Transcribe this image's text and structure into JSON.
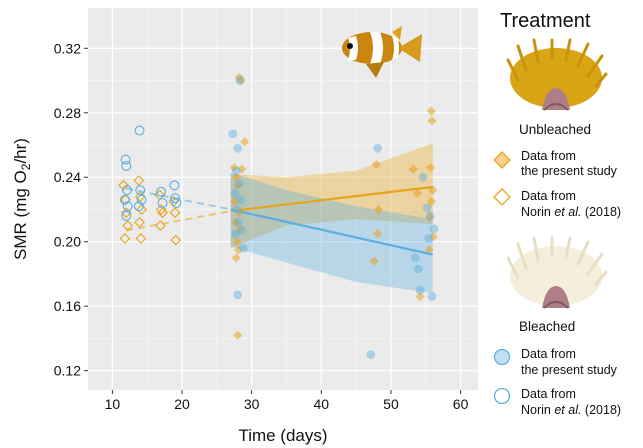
{
  "chart_data": {
    "type": "scatter",
    "xlabel": "Time (days)",
    "ylabel": "SMR (mg O",
    "ylabel_sub": "2",
    "ylabel_tail": "/hr)",
    "xlim": [
      6.5,
      62.5
    ],
    "ylim": [
      0.108,
      0.345
    ],
    "xticks": [
      10,
      20,
      30,
      40,
      50,
      60
    ],
    "yticks": [
      0.12,
      0.16,
      0.2,
      0.24,
      0.28,
      0.32
    ],
    "ytick_labels": [
      "0.12",
      "0.16",
      "0.20",
      "0.24",
      "0.28",
      "0.32"
    ],
    "grid": true,
    "legend_position": "right",
    "legend": {
      "title": "Treatment",
      "unbleached_label": "Unbleached",
      "bleached_label": "Bleached",
      "present_line1": "Data from",
      "present_line2": "the present study",
      "norin_line1": "Data from",
      "norin_line2a": "Norin ",
      "norin_line2b": "et al.",
      "norin_line2c": " (2018)"
    },
    "colors": {
      "unbleached": "#E8A317",
      "bleached": "#5AAEE0",
      "panel": "#EBEBEB",
      "grid": "#FFFFFF"
    },
    "series": [
      {
        "name": "Unbleached — Data from the present study",
        "marker": "filled-diamond",
        "color": "#E8A317",
        "points": [
          [
            27.5,
            0.246
          ],
          [
            27.8,
            0.24
          ],
          [
            28.0,
            0.235
          ],
          [
            27.6,
            0.225
          ],
          [
            28.2,
            0.218
          ],
          [
            27.7,
            0.212
          ],
          [
            28.3,
            0.208
          ],
          [
            27.9,
            0.2
          ],
          [
            28.1,
            0.195
          ],
          [
            27.8,
            0.19
          ],
          [
            28.0,
            0.142
          ],
          [
            29.0,
            0.262
          ],
          [
            28.5,
            0.3
          ],
          [
            28.2,
            0.302
          ],
          [
            28.6,
            0.245
          ],
          [
            47.9,
            0.248
          ],
          [
            48.1,
            0.205
          ],
          [
            47.6,
            0.188
          ],
          [
            48.2,
            0.22
          ],
          [
            53.2,
            0.245
          ],
          [
            53.8,
            0.23
          ],
          [
            54.2,
            0.166
          ],
          [
            55.8,
            0.281
          ],
          [
            55.9,
            0.275
          ],
          [
            55.7,
            0.246
          ],
          [
            56.0,
            0.232
          ],
          [
            55.6,
            0.215
          ],
          [
            56.1,
            0.203
          ],
          [
            55.5,
            0.195
          ],
          [
            55.8,
            0.225
          ]
        ]
      },
      {
        "name": "Unbleached — Data from Norin et al. (2018)",
        "marker": "open-diamond",
        "color": "#E8A317",
        "points": [
          [
            11.6,
            0.235
          ],
          [
            11.9,
            0.226
          ],
          [
            12.0,
            0.218
          ],
          [
            12.2,
            0.21
          ],
          [
            11.8,
            0.202
          ],
          [
            13.8,
            0.238
          ],
          [
            14.0,
            0.228
          ],
          [
            14.2,
            0.22
          ],
          [
            13.9,
            0.212
          ],
          [
            14.1,
            0.202
          ],
          [
            16.8,
            0.229
          ],
          [
            17.0,
            0.22
          ],
          [
            17.2,
            0.218
          ],
          [
            16.9,
            0.21
          ],
          [
            18.8,
            0.225
          ],
          [
            19.0,
            0.218
          ],
          [
            19.1,
            0.201
          ]
        ]
      },
      {
        "name": "Bleached — Data from the present study",
        "marker": "filled-circle",
        "color": "#5AAEE0",
        "points": [
          [
            27.3,
            0.267
          ],
          [
            28.0,
            0.258
          ],
          [
            27.8,
            0.244
          ],
          [
            28.2,
            0.236
          ],
          [
            27.6,
            0.23
          ],
          [
            28.4,
            0.226
          ],
          [
            27.9,
            0.22
          ],
          [
            28.1,
            0.212
          ],
          [
            27.7,
            0.205
          ],
          [
            28.6,
            0.207
          ],
          [
            28.8,
            0.196
          ],
          [
            28.0,
            0.167
          ],
          [
            28.3,
            0.3
          ],
          [
            48.1,
            0.258
          ],
          [
            47.1,
            0.13
          ],
          [
            53.5,
            0.19
          ],
          [
            53.9,
            0.183
          ],
          [
            54.2,
            0.17
          ],
          [
            54.6,
            0.24
          ],
          [
            55.2,
            0.221
          ],
          [
            55.4,
            0.202
          ],
          [
            55.6,
            0.216
          ],
          [
            55.9,
            0.166
          ],
          [
            56.2,
            0.208
          ]
        ]
      },
      {
        "name": "Bleached — Data from Norin et al. (2018)",
        "marker": "open-circle",
        "color": "#5AAEE0",
        "points": [
          [
            11.9,
            0.251
          ],
          [
            12.0,
            0.247
          ],
          [
            12.1,
            0.232
          ],
          [
            11.8,
            0.226
          ],
          [
            12.2,
            0.222
          ],
          [
            12.0,
            0.216
          ],
          [
            13.9,
            0.269
          ],
          [
            14.0,
            0.232
          ],
          [
            14.2,
            0.226
          ],
          [
            13.8,
            0.222
          ],
          [
            17.0,
            0.231
          ],
          [
            17.2,
            0.224
          ],
          [
            18.9,
            0.235
          ],
          [
            19.0,
            0.227
          ],
          [
            19.2,
            0.224
          ]
        ]
      }
    ],
    "trend_lines": [
      {
        "name": "Unbleached trend",
        "color": "#E8A317",
        "dashed_segment": [
          [
            12,
            0.207
          ],
          [
            27,
            0.219
          ]
        ],
        "solid_segment": [
          [
            27,
            0.219
          ],
          [
            56,
            0.234
          ]
        ],
        "ci_upper": [
          [
            27,
            0.242
          ],
          [
            35,
            0.24
          ],
          [
            45,
            0.244
          ],
          [
            56,
            0.261
          ]
        ],
        "ci_lower": [
          [
            27,
            0.196
          ],
          [
            35,
            0.21
          ],
          [
            45,
            0.214
          ],
          [
            56,
            0.211
          ]
        ]
      },
      {
        "name": "Bleached trend",
        "color": "#5AAEE0",
        "dashed_segment": [
          [
            12,
            0.233
          ],
          [
            27,
            0.22
          ]
        ],
        "solid_segment": [
          [
            27,
            0.22
          ],
          [
            56,
            0.192
          ]
        ],
        "ci_upper": [
          [
            27,
            0.243
          ],
          [
            35,
            0.232
          ],
          [
            45,
            0.222
          ],
          [
            56,
            0.214
          ]
        ],
        "ci_lower": [
          [
            27,
            0.197
          ],
          [
            35,
            0.187
          ],
          [
            45,
            0.175
          ],
          [
            56,
            0.168
          ]
        ]
      }
    ]
  },
  "illustrations": {
    "fish": "clownfish-icon",
    "unbleached_anemone": "unbleached-anemone-icon",
    "bleached_anemone": "bleached-anemone-icon"
  }
}
